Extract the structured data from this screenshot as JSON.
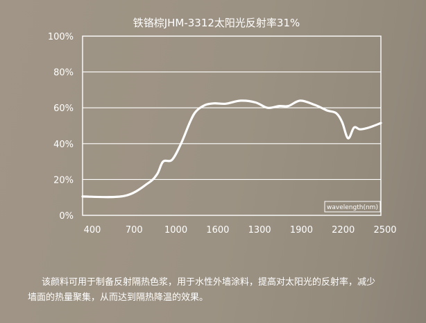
{
  "chart_data": {
    "type": "line",
    "title": "铁铬棕JHM-3312太阳光反射率31%",
    "xlabel": "wavelength(nm)",
    "ylabel": "",
    "x_tick_labels": [
      "400",
      "700",
      "1000",
      "1600",
      "1300",
      "1900",
      "2200",
      "2500"
    ],
    "y_tick_labels": [
      "100%",
      "80%",
      "60%",
      "40%",
      "20%",
      "0%"
    ],
    "ylim": [
      0,
      100
    ],
    "grid": true,
    "series": [
      {
        "x": [
          0.0,
          0.14,
          0.22,
          0.25,
          0.27,
          0.3,
          0.33,
          0.36,
          0.38,
          0.41,
          0.44,
          0.48,
          0.53,
          0.58,
          0.62,
          0.66,
          0.69,
          0.73,
          0.78,
          0.82,
          0.85,
          0.87,
          0.89,
          0.91,
          0.93,
          0.96,
          1.0
        ],
        "values": [
          10.5,
          10.8,
          18,
          23,
          30,
          31,
          40,
          52,
          58,
          61.5,
          62.5,
          62.3,
          64,
          63,
          60,
          61,
          61,
          64,
          61.5,
          58.5,
          57,
          52,
          43,
          49,
          48,
          49,
          51.5
        ]
      }
    ]
  },
  "caption": {
    "line1": "该颜料可用于制备反射隔热色浆，用于水性外墙涂料，提高对太阳光的反射率，减少",
    "line2": "墙面的热量聚集，从而达到隔热降温的效果。"
  }
}
